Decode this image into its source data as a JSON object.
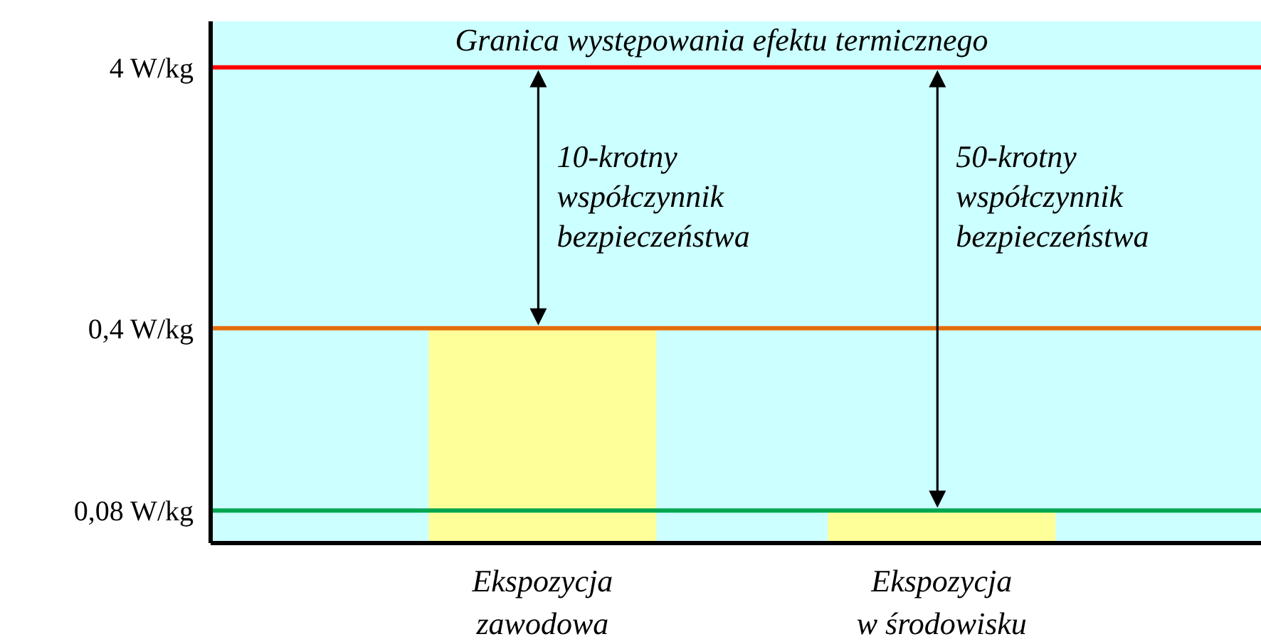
{
  "chart_data": {
    "type": "bar",
    "categories": [
      "Ekspozycja zawodowa",
      "Ekspozycja w środowisku"
    ],
    "values": [
      0.4,
      0.08
    ],
    "color": "#ffff99",
    "ylim": [
      0.06,
      6
    ],
    "log": true,
    "yticks": [
      {
        "value": 0.08,
        "label": "0,08 W/kg"
      },
      {
        "value": 0.4,
        "label": "0,4 W/kg"
      },
      {
        "value": 4,
        "label": "4 W/kg"
      }
    ],
    "ref_lines": [
      {
        "axis": "y",
        "value": 4,
        "label": "Granica występowania efektu termicznego",
        "color": "#ff0000"
      },
      {
        "axis": "y",
        "value": 0.4,
        "label": null,
        "color": "#e46c0a"
      },
      {
        "axis": "y",
        "value": 0.08,
        "label": null,
        "color": "#00a651"
      }
    ],
    "annotations": [
      "10-krotny współczynnik bezpieczeństwa",
      "50-krotny współczynnik bezpieczeństwa"
    ]
  }
}
